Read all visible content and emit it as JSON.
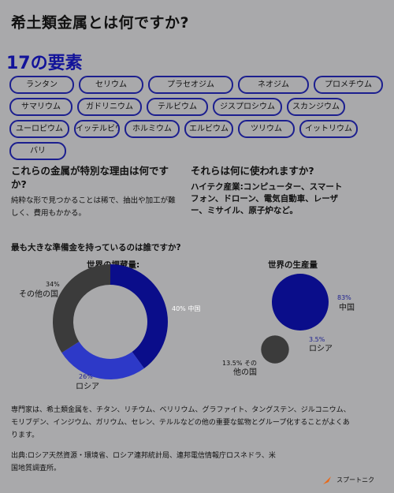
{
  "title": "希土類金属とは何ですか?",
  "count_label": "17の要素",
  "elements": [
    {
      "label": "ランタン",
      "w": 78
    },
    {
      "label": "セリウム",
      "w": 78
    },
    {
      "label": "プラセオジム",
      "w": 104
    },
    {
      "label": "ネオジム",
      "w": 86
    },
    {
      "label": "プロメチウム",
      "w": 84
    },
    {
      "label": "サマリウム",
      "w": 76
    },
    {
      "label": "ガドリニウム",
      "w": 78
    },
    {
      "label": "テルビウム",
      "w": 74
    },
    {
      "label": "ジスプロシウム",
      "w": 84
    },
    {
      "label": "スカンジウム",
      "w": 70
    },
    {
      "label": "ユーロピウム",
      "w": 72
    },
    {
      "label": "イッテルビウム",
      "w": 54
    },
    {
      "label": "ホルミウム",
      "w": 66
    },
    {
      "label": "エルビウム",
      "w": 58
    },
    {
      "label": "ツリウム",
      "w": 68
    },
    {
      "label": "イットリウム",
      "w": 70
    },
    {
      "label": "バリ",
      "w": 68
    }
  ],
  "why_special": {
    "heading": "これらの金属が特別な理由は何ですか?",
    "body": "純粋な形で見つかることは稀で、抽出や加工が難しく、費用もかかる。"
  },
  "uses": {
    "heading": "それらは何に使われますか?",
    "body": "ハイテク産業:コンピューター、スマートフォン、ドローン、電気自動車、レーザー、ミサイル、原子炉など。"
  },
  "reserves_question": "最も大きな準備金を持っているのは誰ですか?",
  "chart_data": [
    {
      "type": "pie",
      "title": "世界の埋蔵量:",
      "categories": [
        "中国",
        "ロシア",
        "その他の国"
      ],
      "values": [
        40,
        26,
        34
      ],
      "labels": [
        "40% 中国",
        "26% ロシア",
        "34% その他の国"
      ],
      "colors": [
        "#0a0d8a",
        "#2d39c8",
        "#3b3b3b"
      ]
    },
    {
      "type": "bubble",
      "title": "世界の生産量",
      "categories": [
        "中国",
        "ロシア",
        "その他の国"
      ],
      "values": [
        83,
        3.5,
        13.5
      ],
      "labels": [
        "83% 中国",
        "3.5% ロシア",
        "13.5% その他の国"
      ],
      "colors": [
        "#0a0d8a",
        "#2d39c8",
        "#3b3b3b"
      ]
    }
  ],
  "experts_note": "専門家は、希土類金属を、チタン、リチウム、ベリリウム、グラファイト、タングステン、ジルコニウム、モリブデン、インジウム、ガリウム、セレン、テルルなどの他の重要な鉱物とグループ化することがよくあります。",
  "source": "出典:ロシア天然資源・環境省、ロシア連邦統計局、連邦電信情報庁ロスネドラ、米国地質調査所。",
  "brand": "スプートニク"
}
